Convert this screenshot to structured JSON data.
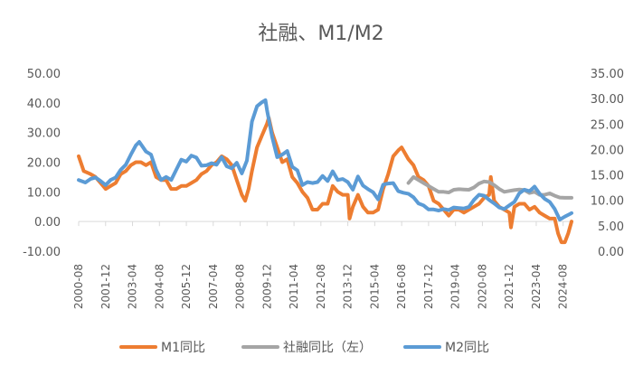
{
  "chart_data": {
    "type": "line",
    "title": "社融、M1/M2",
    "x_ticks": [
      "2000-08",
      "2001-12",
      "2003-04",
      "2004-08",
      "2005-12",
      "2007-04",
      "2008-08",
      "2009-12",
      "2011-04",
      "2012-08",
      "2013-12",
      "2015-04",
      "2016-08",
      "2017-12",
      "2019-04",
      "2020-08",
      "2021-12",
      "2023-04",
      "2024-08"
    ],
    "x_range": [
      "2000-08",
      "2025-01"
    ],
    "y_left": {
      "min": -10,
      "max": 50,
      "step": 10,
      "tick_labels": [
        "-10.00",
        "0.00",
        "10.00",
        "20.00",
        "30.00",
        "40.00",
        "50.00"
      ]
    },
    "y_right": {
      "min": 0,
      "max": 35,
      "step": 5,
      "tick_labels": [
        "0.00",
        "5.00",
        "10.00",
        "15.00",
        "20.00",
        "25.00",
        "30.00",
        "35.00"
      ]
    },
    "grid": false,
    "legend_position": "bottom",
    "series": [
      {
        "name": "M1同比",
        "axis": "left",
        "color": "#ED7D31",
        "points": [
          [
            "2000-08",
            22
          ],
          [
            "2000-11",
            17
          ],
          [
            "2001-03",
            16
          ],
          [
            "2001-06",
            15
          ],
          [
            "2001-09",
            13
          ],
          [
            "2001-12",
            11
          ],
          [
            "2002-03",
            12
          ],
          [
            "2002-06",
            13
          ],
          [
            "2002-09",
            16
          ],
          [
            "2002-12",
            17
          ],
          [
            "2003-03",
            19
          ],
          [
            "2003-06",
            20
          ],
          [
            "2003-09",
            20
          ],
          [
            "2003-12",
            19
          ],
          [
            "2004-03",
            20
          ],
          [
            "2004-06",
            15
          ],
          [
            "2004-09",
            14
          ],
          [
            "2004-12",
            14
          ],
          [
            "2005-03",
            11
          ],
          [
            "2005-06",
            11
          ],
          [
            "2005-09",
            12
          ],
          [
            "2005-12",
            12
          ],
          [
            "2006-03",
            13
          ],
          [
            "2006-06",
            14
          ],
          [
            "2006-09",
            16
          ],
          [
            "2006-12",
            17
          ],
          [
            "2007-03",
            19
          ],
          [
            "2007-06",
            20
          ],
          [
            "2007-09",
            22
          ],
          [
            "2007-12",
            21
          ],
          [
            "2008-03",
            19
          ],
          [
            "2008-06",
            14
          ],
          [
            "2008-09",
            9
          ],
          [
            "2008-11",
            7
          ],
          [
            "2009-01",
            11
          ],
          [
            "2009-03",
            17
          ],
          [
            "2009-06",
            25
          ],
          [
            "2009-09",
            29
          ],
          [
            "2009-12",
            33
          ],
          [
            "2010-01",
            35
          ],
          [
            "2010-03",
            30
          ],
          [
            "2010-06",
            25
          ],
          [
            "2010-09",
            20
          ],
          [
            "2010-12",
            21
          ],
          [
            "2011-03",
            15
          ],
          [
            "2011-06",
            13
          ],
          [
            "2011-09",
            10
          ],
          [
            "2011-12",
            8
          ],
          [
            "2012-03",
            4
          ],
          [
            "2012-06",
            4
          ],
          [
            "2012-09",
            6
          ],
          [
            "2012-12",
            6
          ],
          [
            "2013-03",
            12
          ],
          [
            "2013-06",
            10
          ],
          [
            "2013-09",
            9
          ],
          [
            "2013-12",
            9
          ],
          [
            "2014-01",
            1
          ],
          [
            "2014-03",
            5
          ],
          [
            "2014-06",
            9
          ],
          [
            "2014-09",
            5
          ],
          [
            "2014-12",
            3
          ],
          [
            "2015-03",
            3
          ],
          [
            "2015-06",
            4
          ],
          [
            "2015-09",
            11
          ],
          [
            "2015-12",
            16
          ],
          [
            "2016-03",
            22
          ],
          [
            "2016-06",
            24
          ],
          [
            "2016-08",
            25
          ],
          [
            "2016-12",
            21
          ],
          [
            "2017-03",
            19
          ],
          [
            "2017-06",
            15
          ],
          [
            "2017-09",
            14
          ],
          [
            "2017-12",
            12
          ],
          [
            "2018-03",
            7
          ],
          [
            "2018-06",
            6
          ],
          [
            "2018-09",
            4
          ],
          [
            "2018-12",
            2
          ],
          [
            "2019-03",
            4
          ],
          [
            "2019-06",
            4
          ],
          [
            "2019-09",
            3
          ],
          [
            "2019-12",
            4
          ],
          [
            "2020-03",
            5
          ],
          [
            "2020-06",
            6
          ],
          [
            "2020-09",
            8
          ],
          [
            "2020-12",
            9
          ],
          [
            "2021-01",
            15
          ],
          [
            "2021-03",
            7
          ],
          [
            "2021-06",
            5
          ],
          [
            "2021-09",
            4
          ],
          [
            "2021-12",
            3
          ],
          [
            "2022-01",
            -2
          ],
          [
            "2022-03",
            5
          ],
          [
            "2022-06",
            6
          ],
          [
            "2022-09",
            6
          ],
          [
            "2022-12",
            4
          ],
          [
            "2023-03",
            5
          ],
          [
            "2023-06",
            3
          ],
          [
            "2023-09",
            2
          ],
          [
            "2023-12",
            1
          ],
          [
            "2024-03",
            1
          ],
          [
            "2024-05",
            -4
          ],
          [
            "2024-07",
            -7
          ],
          [
            "2024-09",
            -7
          ],
          [
            "2024-11",
            -4
          ],
          [
            "2025-01",
            0
          ]
        ]
      },
      {
        "name": "社融同比（左）",
        "axis": "left",
        "color": "#A5A5A5",
        "points": [
          [
            "2016-12",
            13
          ],
          [
            "2017-03",
            15
          ],
          [
            "2017-06",
            14
          ],
          [
            "2017-09",
            13
          ],
          [
            "2017-12",
            12
          ],
          [
            "2018-03",
            11
          ],
          [
            "2018-06",
            10
          ],
          [
            "2018-09",
            10
          ],
          [
            "2018-12",
            9.8
          ],
          [
            "2019-03",
            10.7
          ],
          [
            "2019-06",
            10.9
          ],
          [
            "2019-09",
            10.8
          ],
          [
            "2019-12",
            10.7
          ],
          [
            "2020-03",
            11.5
          ],
          [
            "2020-06",
            12.8
          ],
          [
            "2020-09",
            13.5
          ],
          [
            "2020-12",
            13.3
          ],
          [
            "2021-03",
            12.3
          ],
          [
            "2021-06",
            11
          ],
          [
            "2021-09",
            10
          ],
          [
            "2021-12",
            10.3
          ],
          [
            "2022-03",
            10.6
          ],
          [
            "2022-06",
            10.8
          ],
          [
            "2022-09",
            10.6
          ],
          [
            "2022-12",
            9.6
          ],
          [
            "2023-03",
            10
          ],
          [
            "2023-06",
            9
          ],
          [
            "2023-09",
            9
          ],
          [
            "2023-12",
            9.5
          ],
          [
            "2024-03",
            8.7
          ],
          [
            "2024-06",
            8.1
          ],
          [
            "2024-09",
            8
          ],
          [
            "2024-12",
            8
          ],
          [
            "2025-01",
            8
          ]
        ]
      },
      {
        "name": "M2同比",
        "axis": "right",
        "color": "#5B9BD5",
        "points": [
          [
            "2000-08",
            14
          ],
          [
            "2000-12",
            13.5
          ],
          [
            "2001-03",
            14.2
          ],
          [
            "2001-06",
            14.5
          ],
          [
            "2001-09",
            13.8
          ],
          [
            "2001-12",
            13
          ],
          [
            "2002-03",
            14
          ],
          [
            "2002-06",
            14.5
          ],
          [
            "2002-09",
            16
          ],
          [
            "2002-12",
            17
          ],
          [
            "2003-03",
            19
          ],
          [
            "2003-06",
            20.8
          ],
          [
            "2003-08",
            21.5
          ],
          [
            "2003-12",
            19.6
          ],
          [
            "2004-03",
            19
          ],
          [
            "2004-06",
            16
          ],
          [
            "2004-09",
            14
          ],
          [
            "2004-12",
            14.6
          ],
          [
            "2005-03",
            14
          ],
          [
            "2005-06",
            16
          ],
          [
            "2005-09",
            18
          ],
          [
            "2005-12",
            17.6
          ],
          [
            "2006-03",
            18.8
          ],
          [
            "2006-06",
            18.4
          ],
          [
            "2006-09",
            16.8
          ],
          [
            "2006-12",
            16.9
          ],
          [
            "2007-03",
            17.3
          ],
          [
            "2007-06",
            17
          ],
          [
            "2007-09",
            18.5
          ],
          [
            "2007-12",
            16.7
          ],
          [
            "2008-03",
            16.3
          ],
          [
            "2008-06",
            17.4
          ],
          [
            "2008-09",
            15.3
          ],
          [
            "2008-12",
            17.8
          ],
          [
            "2009-03",
            25.5
          ],
          [
            "2009-06",
            28.5
          ],
          [
            "2009-09",
            29.3
          ],
          [
            "2009-11",
            29.7
          ],
          [
            "2009-12",
            27.7
          ],
          [
            "2010-03",
            22.5
          ],
          [
            "2010-06",
            18.5
          ],
          [
            "2010-09",
            19
          ],
          [
            "2010-12",
            19.7
          ],
          [
            "2011-03",
            16.6
          ],
          [
            "2011-06",
            15.9
          ],
          [
            "2011-09",
            13
          ],
          [
            "2011-12",
            13.6
          ],
          [
            "2012-03",
            13.4
          ],
          [
            "2012-06",
            13.6
          ],
          [
            "2012-09",
            14.8
          ],
          [
            "2012-12",
            13.8
          ],
          [
            "2013-03",
            15.7
          ],
          [
            "2013-06",
            14
          ],
          [
            "2013-09",
            14.2
          ],
          [
            "2013-12",
            13.6
          ],
          [
            "2014-03",
            12.1
          ],
          [
            "2014-06",
            14.7
          ],
          [
            "2014-09",
            12.9
          ],
          [
            "2014-12",
            12.2
          ],
          [
            "2015-03",
            11.6
          ],
          [
            "2015-06",
            10.2
          ],
          [
            "2015-09",
            13.1
          ],
          [
            "2015-12",
            13.3
          ],
          [
            "2016-03",
            13.4
          ],
          [
            "2016-06",
            11.8
          ],
          [
            "2016-09",
            11.5
          ],
          [
            "2016-12",
            11.3
          ],
          [
            "2017-03",
            10.6
          ],
          [
            "2017-06",
            9.4
          ],
          [
            "2017-09",
            9
          ],
          [
            "2017-12",
            8.2
          ],
          [
            "2018-03",
            8.2
          ],
          [
            "2018-06",
            8
          ],
          [
            "2018-09",
            8.3
          ],
          [
            "2018-12",
            8.1
          ],
          [
            "2019-03",
            8.6
          ],
          [
            "2019-06",
            8.5
          ],
          [
            "2019-09",
            8.4
          ],
          [
            "2019-12",
            8.7
          ],
          [
            "2020-03",
            10.1
          ],
          [
            "2020-06",
            11.1
          ],
          [
            "2020-09",
            10.9
          ],
          [
            "2020-12",
            10.1
          ],
          [
            "2021-03",
            9.4
          ],
          [
            "2021-06",
            8.6
          ],
          [
            "2021-09",
            8.3
          ],
          [
            "2021-12",
            9
          ],
          [
            "2022-03",
            9.7
          ],
          [
            "2022-06",
            11.4
          ],
          [
            "2022-09",
            12.1
          ],
          [
            "2022-12",
            11.8
          ],
          [
            "2023-03",
            12.7
          ],
          [
            "2023-06",
            11.3
          ],
          [
            "2023-09",
            10.3
          ],
          [
            "2023-12",
            9.7
          ],
          [
            "2024-03",
            8.3
          ],
          [
            "2024-06",
            6.2
          ],
          [
            "2024-09",
            6.8
          ],
          [
            "2024-12",
            7.3
          ],
          [
            "2025-01",
            7.5
          ]
        ]
      }
    ]
  }
}
